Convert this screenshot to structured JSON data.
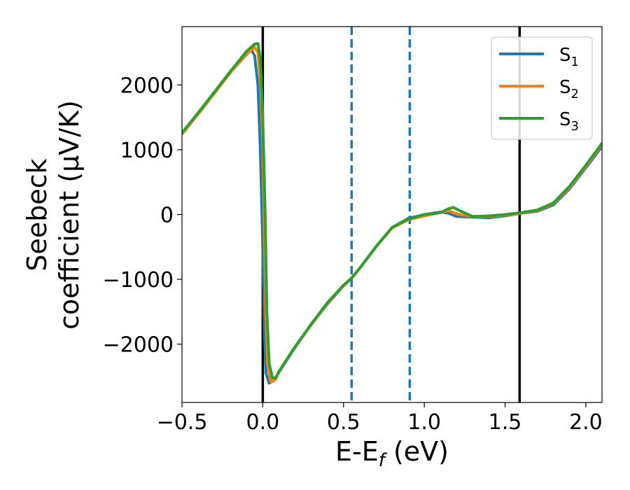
{
  "chart_data": {
    "type": "line",
    "title": "",
    "xlabel": {
      "base": "E-E",
      "sub": "f",
      "suffix": " (eV)"
    },
    "ylabel": {
      "line1": "Seebeck",
      "line2": "coefficient  (μV/K)"
    },
    "xlim": [
      -0.5,
      2.1
    ],
    "ylim": [
      -2900,
      2900
    ],
    "xticks": [
      -0.5,
      0.0,
      0.5,
      1.0,
      1.5,
      2.0
    ],
    "xtick_labels": [
      "−0.5",
      "0.0",
      "0.5",
      "1.0",
      "1.5",
      "2.0"
    ],
    "yticks": [
      -2000,
      -1000,
      0,
      1000,
      2000
    ],
    "ytick_labels": [
      "−2000",
      "−1000",
      "0",
      "1000",
      "2000"
    ],
    "grid": false,
    "legend_position": "top-right",
    "vlines": [
      {
        "x": 0.0,
        "style": "solid",
        "color": "#000000"
      },
      {
        "x": 1.59,
        "style": "solid",
        "color": "#000000"
      },
      {
        "x": 0.55,
        "style": "dashed",
        "color": "#1f77b4"
      },
      {
        "x": 0.91,
        "style": "dashed",
        "color": "#1f77b4"
      }
    ],
    "series": [
      {
        "name_base": "S",
        "name_sub": "1",
        "color": "#1f77b4",
        "points": [
          [
            -0.5,
            1250
          ],
          [
            -0.4,
            1560
          ],
          [
            -0.3,
            1880
          ],
          [
            -0.2,
            2200
          ],
          [
            -0.1,
            2470
          ],
          [
            -0.07,
            2540
          ],
          [
            -0.05,
            2450
          ],
          [
            -0.03,
            2000
          ],
          [
            -0.015,
            1000
          ],
          [
            0.0,
            -500
          ],
          [
            0.01,
            -1800
          ],
          [
            0.02,
            -2450
          ],
          [
            0.04,
            -2600
          ],
          [
            0.07,
            -2560
          ],
          [
            0.1,
            -2430
          ],
          [
            0.2,
            -2050
          ],
          [
            0.3,
            -1700
          ],
          [
            0.4,
            -1380
          ],
          [
            0.5,
            -1100
          ],
          [
            0.55,
            -980
          ],
          [
            0.6,
            -830
          ],
          [
            0.7,
            -500
          ],
          [
            0.8,
            -200
          ],
          [
            0.9,
            -60
          ],
          [
            1.0,
            0
          ],
          [
            1.1,
            40
          ],
          [
            1.15,
            20
          ],
          [
            1.2,
            -30
          ],
          [
            1.3,
            -40
          ],
          [
            1.4,
            -50
          ],
          [
            1.5,
            -20
          ],
          [
            1.6,
            20
          ],
          [
            1.7,
            50
          ],
          [
            1.8,
            150
          ],
          [
            1.9,
            400
          ],
          [
            2.0,
            720
          ],
          [
            2.1,
            1050
          ]
        ]
      },
      {
        "name_base": "S",
        "name_sub": "2",
        "color": "#ff7f0e",
        "points": [
          [
            -0.5,
            1240
          ],
          [
            -0.4,
            1550
          ],
          [
            -0.3,
            1870
          ],
          [
            -0.2,
            2190
          ],
          [
            -0.1,
            2480
          ],
          [
            -0.05,
            2580
          ],
          [
            -0.03,
            2500
          ],
          [
            -0.01,
            1900
          ],
          [
            0.0,
            1000
          ],
          [
            0.01,
            -300
          ],
          [
            0.02,
            -1600
          ],
          [
            0.03,
            -2300
          ],
          [
            0.05,
            -2580
          ],
          [
            0.08,
            -2540
          ],
          [
            0.1,
            -2420
          ],
          [
            0.2,
            -2040
          ],
          [
            0.3,
            -1700
          ],
          [
            0.4,
            -1370
          ],
          [
            0.5,
            -1100
          ],
          [
            0.55,
            -980
          ],
          [
            0.6,
            -830
          ],
          [
            0.7,
            -500
          ],
          [
            0.8,
            -210
          ],
          [
            0.9,
            -80
          ],
          [
            1.0,
            -20
          ],
          [
            1.1,
            30
          ],
          [
            1.15,
            60
          ],
          [
            1.2,
            10
          ],
          [
            1.3,
            -30
          ],
          [
            1.4,
            -30
          ],
          [
            1.5,
            -10
          ],
          [
            1.6,
            20
          ],
          [
            1.7,
            60
          ],
          [
            1.8,
            170
          ],
          [
            1.9,
            420
          ],
          [
            2.0,
            740
          ],
          [
            2.1,
            1080
          ]
        ]
      },
      {
        "name_base": "S",
        "name_sub": "3",
        "color": "#2ca02c",
        "points": [
          [
            -0.5,
            1260
          ],
          [
            -0.4,
            1570
          ],
          [
            -0.3,
            1890
          ],
          [
            -0.2,
            2210
          ],
          [
            -0.1,
            2520
          ],
          [
            -0.05,
            2630
          ],
          [
            -0.03,
            2640
          ],
          [
            -0.015,
            2400
          ],
          [
            0.0,
            1500
          ],
          [
            0.015,
            0
          ],
          [
            0.025,
            -1500
          ],
          [
            0.04,
            -2300
          ],
          [
            0.06,
            -2520
          ],
          [
            0.08,
            -2520
          ],
          [
            0.1,
            -2420
          ],
          [
            0.2,
            -2040
          ],
          [
            0.3,
            -1690
          ],
          [
            0.4,
            -1360
          ],
          [
            0.5,
            -1090
          ],
          [
            0.55,
            -980
          ],
          [
            0.6,
            -830
          ],
          [
            0.7,
            -500
          ],
          [
            0.8,
            -200
          ],
          [
            0.9,
            -70
          ],
          [
            1.0,
            0
          ],
          [
            1.1,
            30
          ],
          [
            1.15,
            90
          ],
          [
            1.18,
            110
          ],
          [
            1.22,
            60
          ],
          [
            1.3,
            -30
          ],
          [
            1.4,
            -20
          ],
          [
            1.5,
            0
          ],
          [
            1.6,
            30
          ],
          [
            1.7,
            70
          ],
          [
            1.8,
            180
          ],
          [
            1.9,
            440
          ],
          [
            2.0,
            760
          ],
          [
            2.1,
            1100
          ]
        ]
      }
    ]
  }
}
